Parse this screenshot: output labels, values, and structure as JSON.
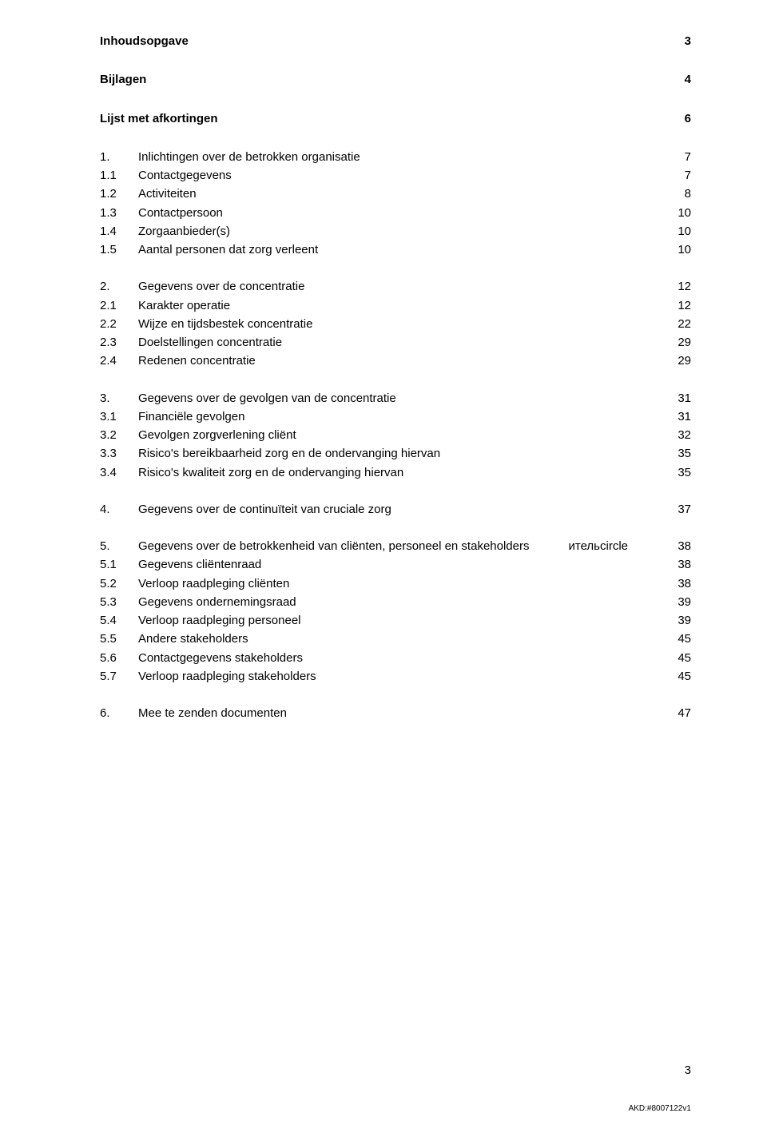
{
  "toc": {
    "heading1": {
      "label": "Inhoudsopgave",
      "page": "3"
    },
    "heading2": {
      "label": "Bijlagen",
      "page": "4"
    },
    "heading3": {
      "label": "Lijst met afkortingen",
      "page": "6"
    },
    "s1": {
      "num": "1.",
      "label": "Inlichtingen over de betrokken organisatie",
      "page": "7",
      "items": [
        {
          "num": "1.1",
          "label": "Contactgegevens",
          "page": "7"
        },
        {
          "num": "1.2",
          "label": "Activiteiten",
          "page": "8"
        },
        {
          "num": "1.3",
          "label": "Contactpersoon",
          "page": "10"
        },
        {
          "num": "1.4",
          "label": "Zorgaanbieder(s)",
          "page": "10"
        },
        {
          "num": "1.5",
          "label": "Aantal personen dat zorg verleent",
          "page": "10"
        }
      ]
    },
    "s2": {
      "num": "2.",
      "label": "Gegevens over de concentratie",
      "page": "12",
      "items": [
        {
          "num": "2.1",
          "label": "Karakter operatie",
          "page": "12"
        },
        {
          "num": "2.2",
          "label": "Wijze en tijdsbestek concentratie",
          "page": "22"
        },
        {
          "num": "2.3",
          "label": "Doelstellingen concentratie",
          "page": "29"
        },
        {
          "num": "2.4",
          "label": "Redenen concentratie",
          "page": "29"
        }
      ]
    },
    "s3": {
      "num": "3.",
      "label": "Gegevens over de gevolgen van de concentratie",
      "page": "31",
      "items": [
        {
          "num": "3.1",
          "label": "Financiële gevolgen",
          "page": "31"
        },
        {
          "num": "3.2",
          "label": "Gevolgen zorgverlening cliënt",
          "page": "32"
        },
        {
          "num": "3.3",
          "label": "Risico's bereikbaarheid zorg en de ondervanging hiervan",
          "page": "35"
        },
        {
          "num": "3.4",
          "label": "Risico's kwaliteit zorg en de ondervanging hiervan",
          "page": "35"
        }
      ]
    },
    "s4": {
      "num": "4.",
      "label": "Gegevens over de continuïteit van cruciale zorg",
      "page": "37"
    },
    "s5": {
      "num": "5.",
      "label": "Gegevens over de betrokkenheid van cliënten, personeel en stakeholders",
      "page": "38",
      "items": [
        {
          "num": "5.1",
          "label": "Gegevens cliëntenraad",
          "page": "38"
        },
        {
          "num": "5.2",
          "label": "Verloop raadpleging cliënten",
          "page": "38"
        },
        {
          "num": "5.3",
          "label": "Gegevens ondernemingsraad",
          "page": "39"
        },
        {
          "num": "5.4",
          "label": "Verloop raadpleging personeel",
          "page": "39"
        },
        {
          "num": "5.5",
          "label": "Andere stakeholders",
          "page": "45"
        },
        {
          "num": "5.6",
          "label": "Contactgegevens stakeholders",
          "page": "45"
        },
        {
          "num": "5.7",
          "label": "Verloop raadpleging stakeholders",
          "page": "45"
        }
      ]
    },
    "s6": {
      "num": "6.",
      "label": "Mee te zenden documenten",
      "page": "47"
    }
  },
  "page_number": "3",
  "footer": "AKD:#8007122v1"
}
